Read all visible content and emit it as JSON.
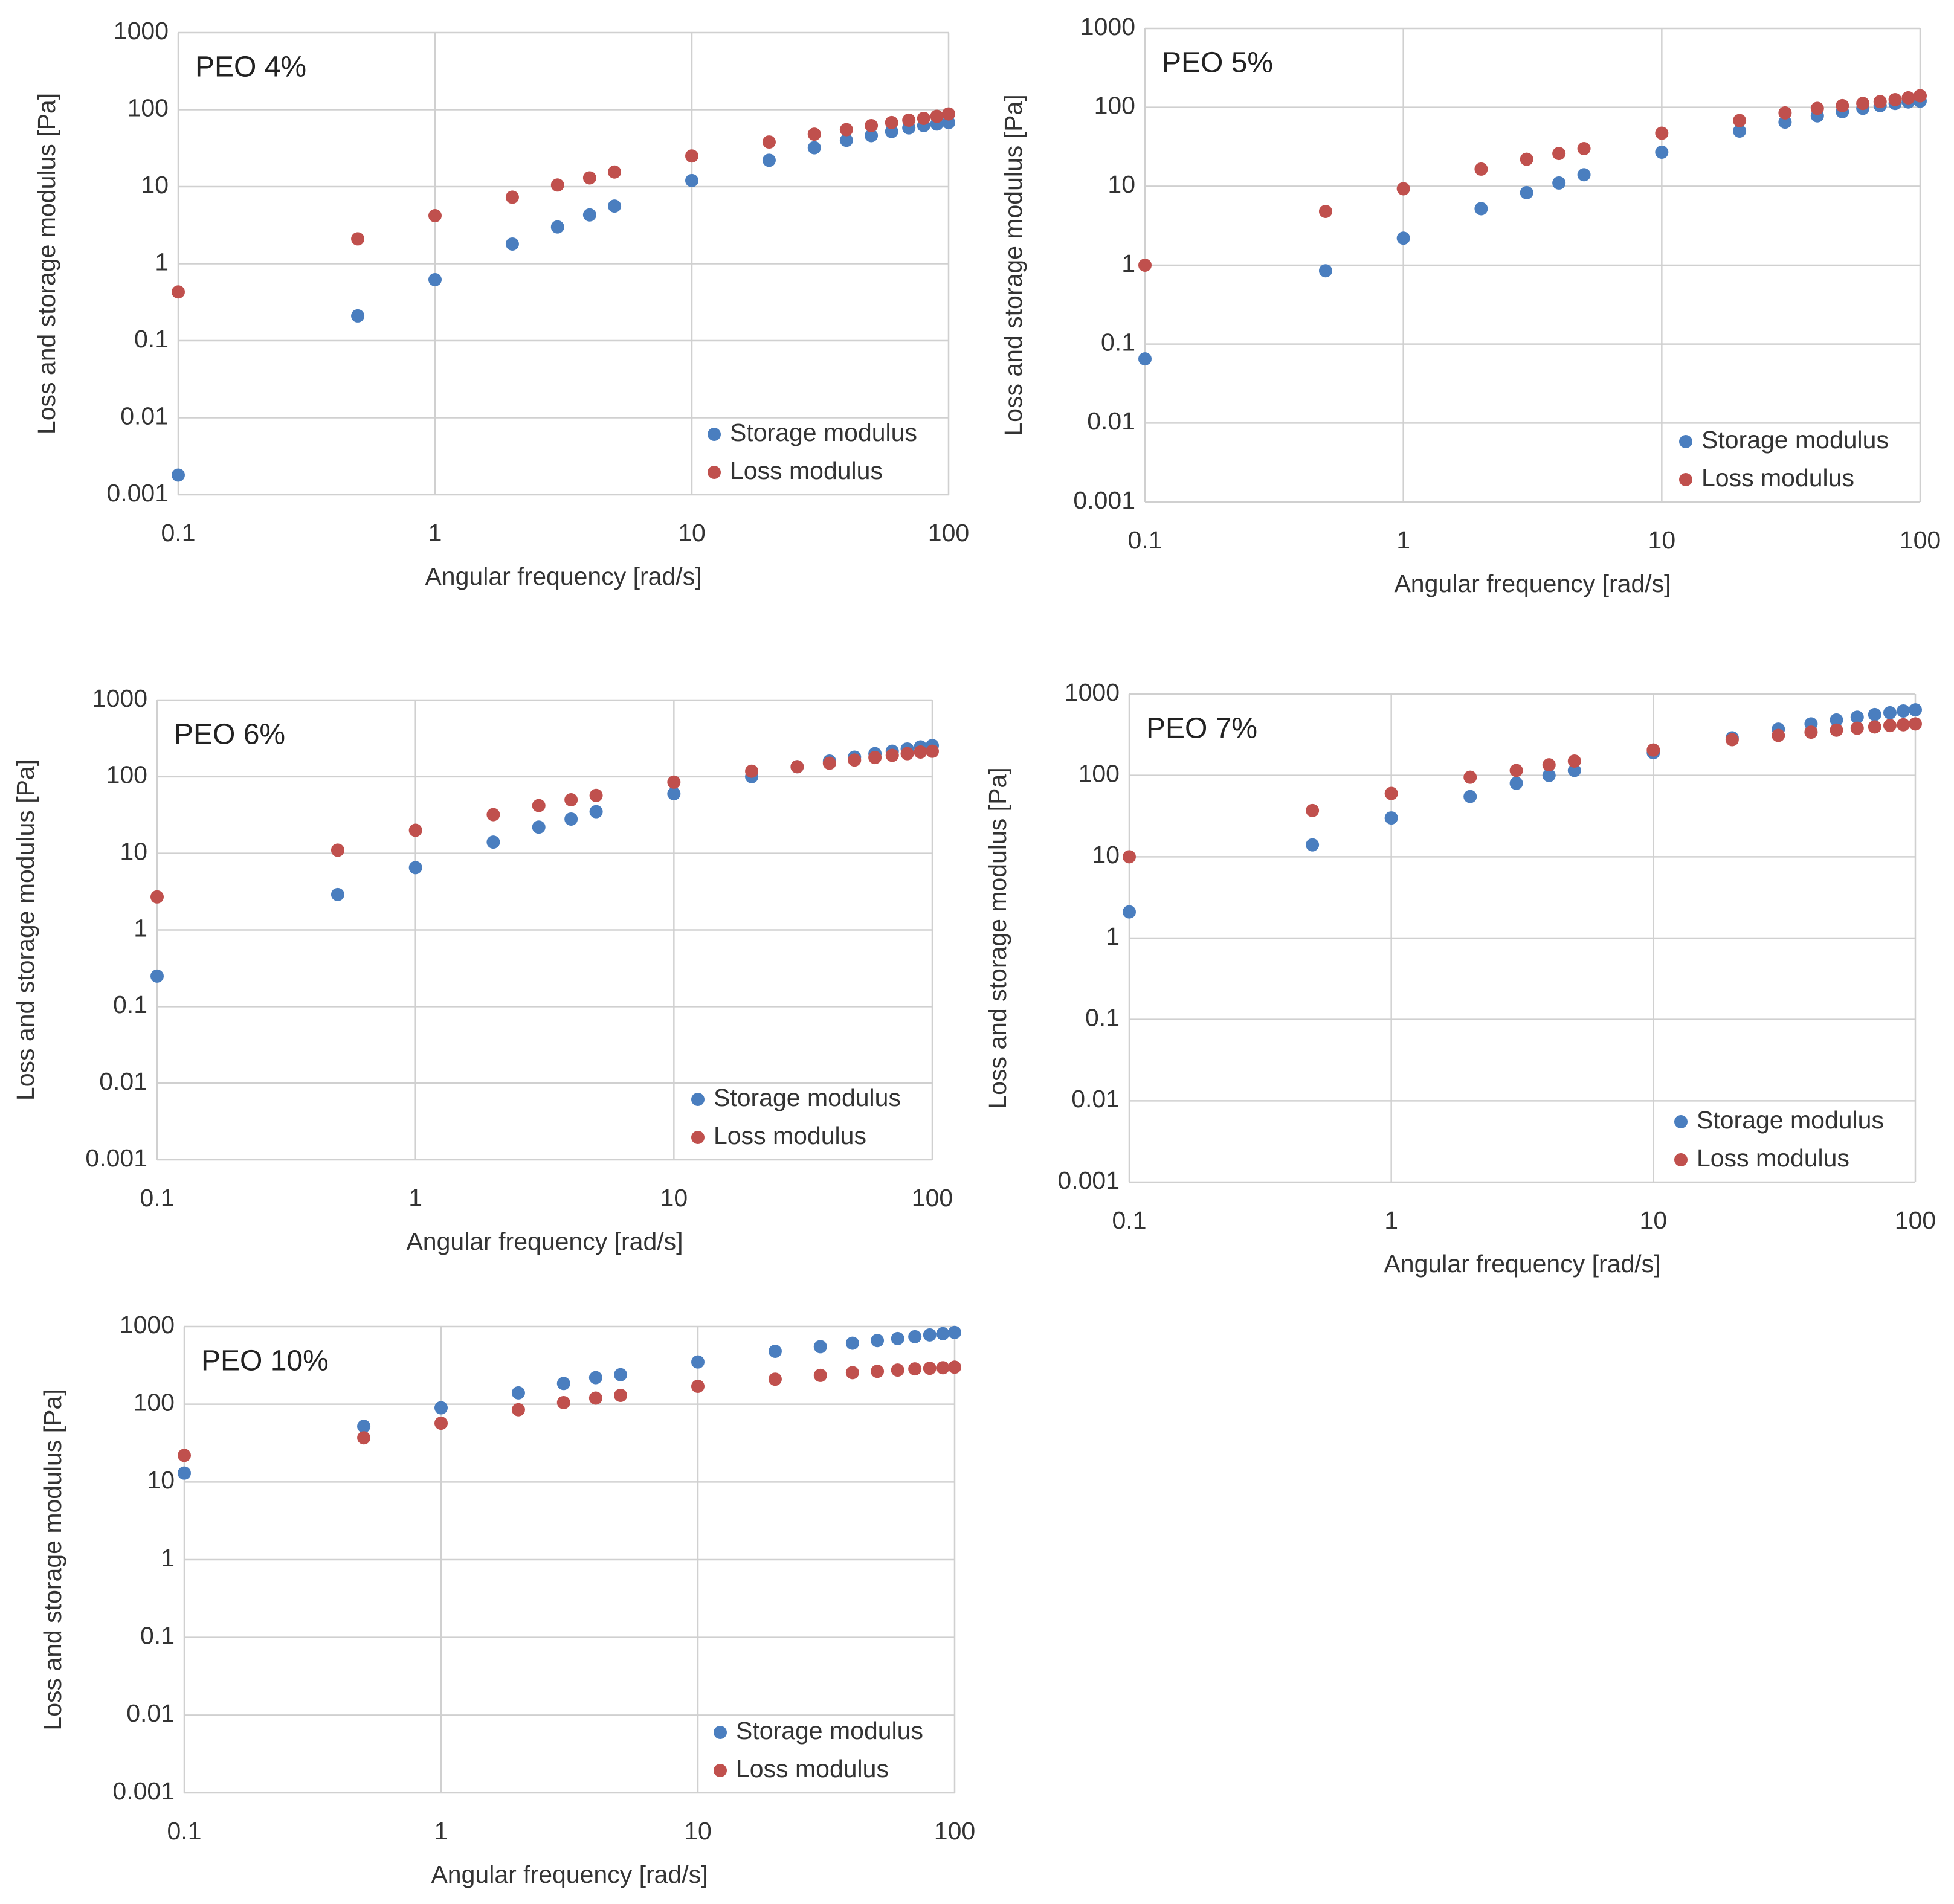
{
  "chart_data": [
    {
      "type": "scatter",
      "title": "PEO 4%",
      "xlabel": "Angular frequency  [rad/s]",
      "ylabel": "Loss and storage modulus [Pa]",
      "xscale": "log",
      "yscale": "log",
      "grid": true,
      "legend": "lower right",
      "x": [
        0.1,
        0.5,
        1,
        2,
        3,
        4,
        5,
        10,
        20,
        30,
        40,
        50,
        60,
        70,
        80,
        90,
        100
      ],
      "series": [
        {
          "name": "Storage modulus",
          "color": "#4a7ebf",
          "values": [
            0.0018,
            0.21,
            0.62,
            1.8,
            3.0,
            4.3,
            5.6,
            12,
            22,
            32,
            40,
            46,
            52,
            58,
            62,
            65,
            68
          ]
        },
        {
          "name": "Loss modulus",
          "color": "#c0504d",
          "values": [
            0.43,
            2.1,
            4.2,
            7.3,
            10.5,
            13,
            15.5,
            25,
            38,
            48,
            55,
            62,
            68,
            73,
            77,
            82,
            88
          ]
        }
      ],
      "xlim": [
        0.1,
        100
      ],
      "ylim": [
        0.001,
        1000
      ],
      "xticks": [
        0.1,
        1,
        10,
        100
      ],
      "yticks": [
        0.001,
        0.01,
        0.1,
        1,
        10,
        100,
        1000
      ]
    },
    {
      "type": "scatter",
      "title": "PEO 5%",
      "xlabel": "Angular frequency [rad/s]",
      "ylabel": "Loss and storage modulus [Pa]",
      "xscale": "log",
      "yscale": "log",
      "grid": true,
      "legend": "lower right",
      "x": [
        0.1,
        0.5,
        1,
        2,
        3,
        4,
        5,
        10,
        20,
        30,
        40,
        50,
        60,
        70,
        80,
        90,
        100
      ],
      "series": [
        {
          "name": "Storage modulus",
          "color": "#4a7ebf",
          "values": [
            0.065,
            0.85,
            2.2,
            5.2,
            8.3,
            11,
            14,
            27,
            50,
            65,
            78,
            88,
            97,
            105,
            112,
            117,
            120
          ]
        },
        {
          "name": "Loss modulus",
          "color": "#c0504d",
          "values": [
            1.0,
            4.8,
            9.3,
            16.5,
            22,
            26,
            30,
            47,
            68,
            85,
            97,
            105,
            112,
            118,
            125,
            132,
            140
          ]
        }
      ],
      "xlim": [
        0.1,
        100
      ],
      "ylim": [
        0.001,
        1000
      ],
      "xticks": [
        0.1,
        1,
        10,
        100
      ],
      "yticks": [
        0.001,
        0.01,
        0.1,
        1,
        10,
        100,
        1000
      ]
    },
    {
      "type": "scatter",
      "title": "PEO 6%",
      "xlabel": "Angular frequency [rad/s]",
      "ylabel": "Loss and storage modulus [Pa]",
      "xscale": "log",
      "yscale": "log",
      "grid": true,
      "legend": "lower right",
      "x": [
        0.1,
        0.5,
        1,
        2,
        3,
        4,
        5,
        10,
        20,
        30,
        40,
        50,
        60,
        70,
        80,
        90,
        100
      ],
      "series": [
        {
          "name": "Storage modulus",
          "color": "#4a7ebf",
          "values": [
            0.25,
            2.9,
            6.5,
            14,
            22,
            28,
            35,
            60,
            100,
            135,
            160,
            180,
            200,
            215,
            230,
            245,
            255
          ]
        },
        {
          "name": "Loss modulus",
          "color": "#c0504d",
          "values": [
            2.7,
            11,
            20,
            32,
            42,
            50,
            57,
            85,
            118,
            135,
            150,
            165,
            178,
            190,
            200,
            210,
            215
          ]
        }
      ],
      "xlim": [
        0.1,
        100
      ],
      "ylim": [
        0.001,
        1000
      ],
      "xticks": [
        0.1,
        1,
        10,
        100
      ],
      "yticks": [
        0.001,
        0.01,
        0.1,
        1,
        10,
        100,
        1000
      ]
    },
    {
      "type": "scatter",
      "title": "PEO 7%",
      "xlabel": "Angular frequency [rad/s]",
      "ylabel": "Loss and storage modulus [Pa]",
      "xscale": "log",
      "yscale": "log",
      "grid": true,
      "legend": "lower right",
      "x": [
        0.1,
        0.5,
        1,
        2,
        3,
        4,
        5,
        10,
        20,
        30,
        40,
        50,
        60,
        70,
        80,
        90,
        100
      ],
      "series": [
        {
          "name": "Storage modulus",
          "color": "#4a7ebf",
          "values": [
            2.1,
            14,
            30,
            55,
            80,
            100,
            115,
            190,
            290,
            370,
            430,
            480,
            520,
            560,
            590,
            620,
            640
          ]
        },
        {
          "name": "Loss modulus",
          "color": "#c0504d",
          "values": [
            10,
            37,
            60,
            95,
            115,
            135,
            150,
            205,
            275,
            310,
            340,
            360,
            380,
            395,
            410,
            420,
            430
          ]
        }
      ],
      "xlim": [
        0.1,
        100
      ],
      "ylim": [
        0.001,
        1000
      ],
      "xticks": [
        0.1,
        1,
        10,
        100
      ],
      "yticks": [
        0.001,
        0.01,
        0.1,
        1,
        10,
        100,
        1000
      ]
    },
    {
      "type": "scatter",
      "title": "PEO 10%",
      "xlabel": "Angular frequency [rad/s]",
      "ylabel": "Loss and storage modulus [Pa]",
      "xscale": "log",
      "yscale": "log",
      "grid": true,
      "legend": "lower right",
      "x": [
        0.1,
        0.5,
        1,
        2,
        3,
        4,
        5,
        10,
        20,
        30,
        40,
        50,
        60,
        70,
        80,
        90,
        100
      ],
      "series": [
        {
          "name": "Storage modulus",
          "color": "#4a7ebf",
          "values": [
            13,
            52,
            90,
            140,
            185,
            220,
            240,
            350,
            480,
            550,
            610,
            660,
            700,
            740,
            780,
            810,
            840
          ]
        },
        {
          "name": "Loss modulus",
          "color": "#c0504d",
          "values": [
            22,
            37,
            57,
            85,
            105,
            120,
            130,
            170,
            210,
            235,
            255,
            265,
            275,
            285,
            290,
            295,
            300
          ]
        }
      ],
      "xlim": [
        0.1,
        100
      ],
      "ylim": [
        0.001,
        1000
      ],
      "xticks": [
        0.1,
        1,
        10,
        100
      ],
      "yticks": [
        0.001,
        0.01,
        0.1,
        1,
        10,
        100,
        1000
      ]
    }
  ]
}
